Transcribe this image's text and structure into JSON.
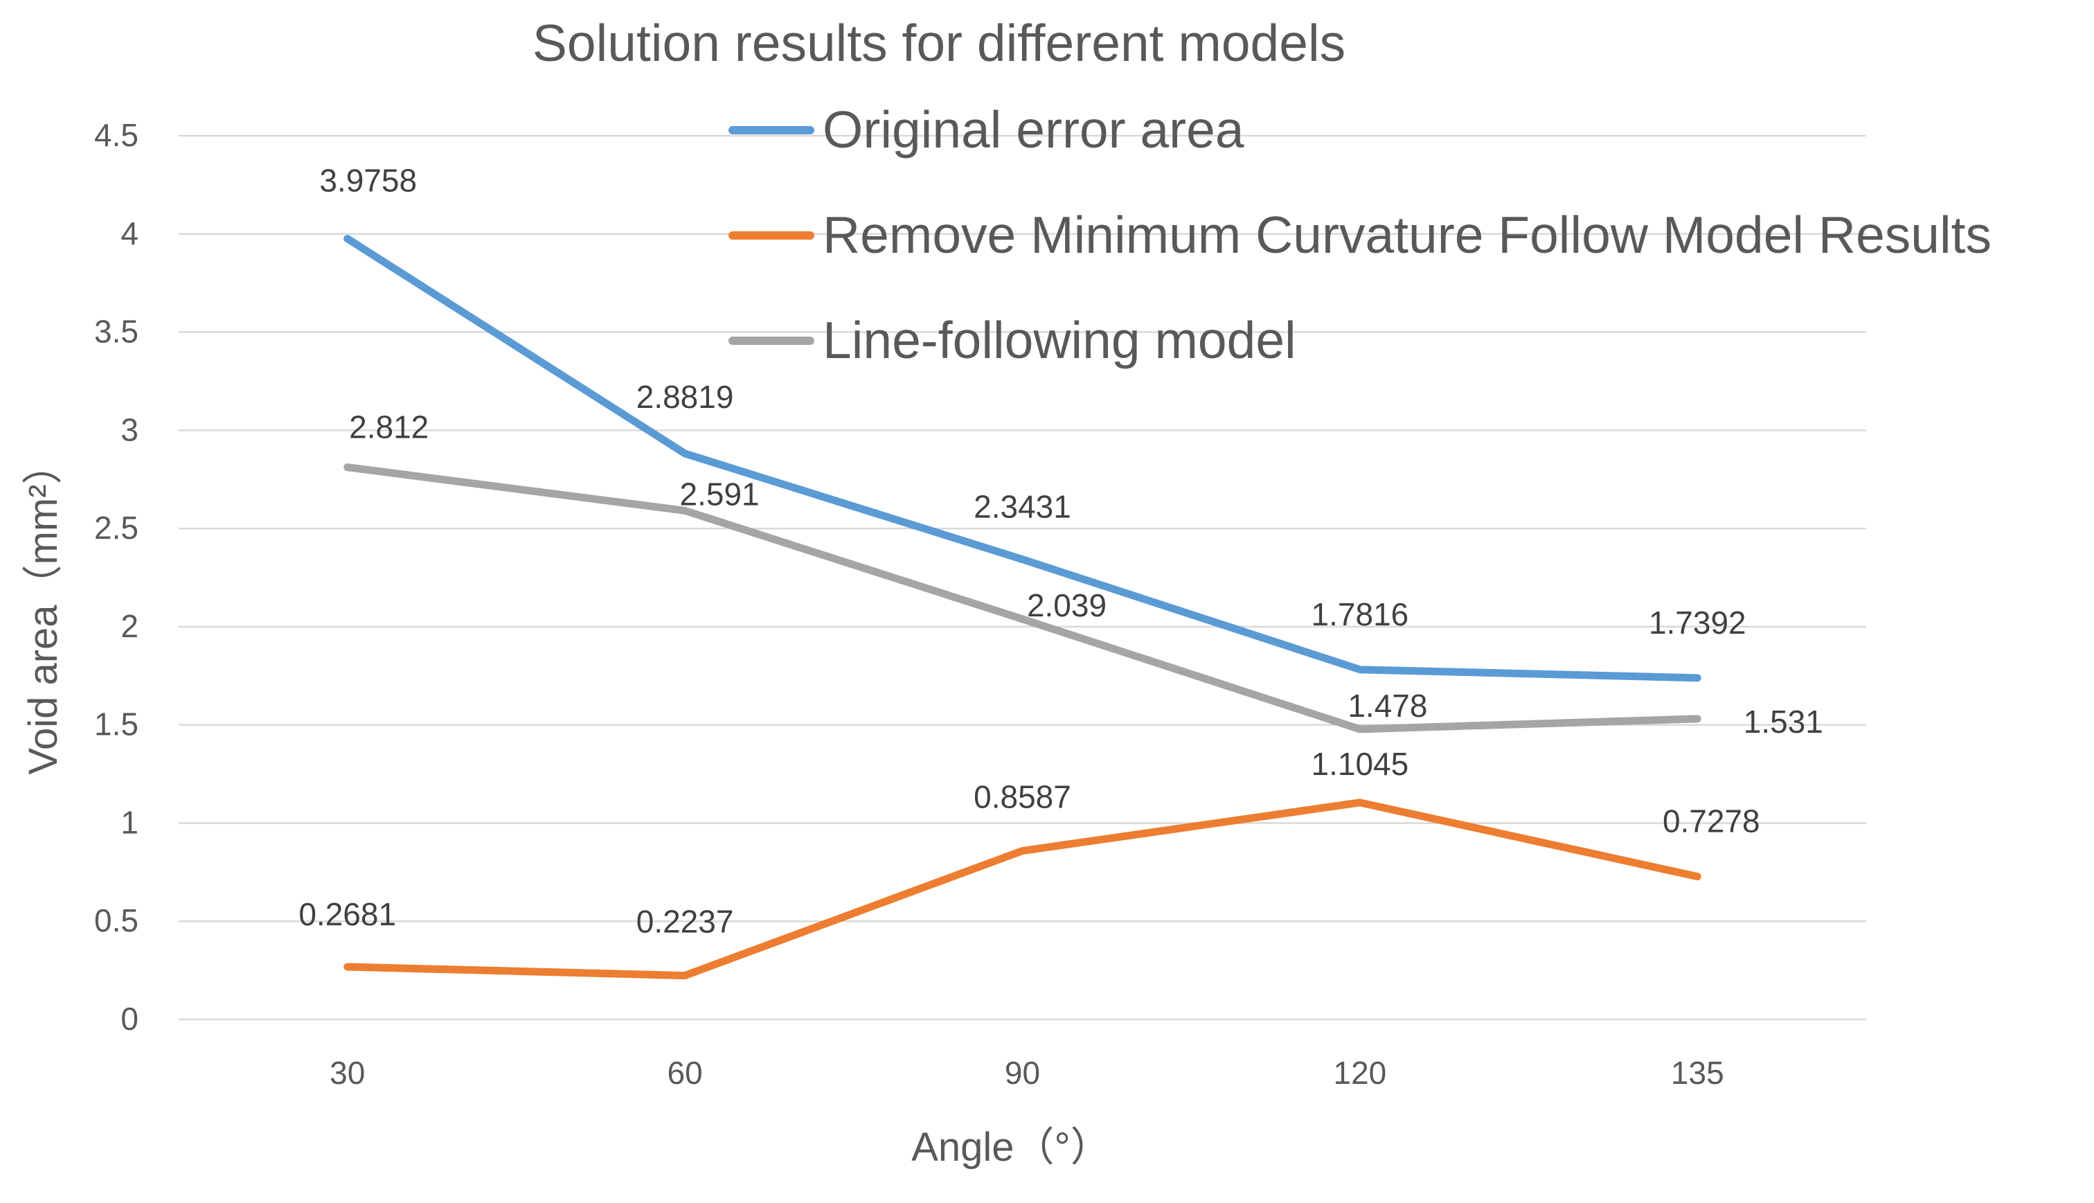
{
  "chart_data": {
    "type": "line",
    "title": "Solution results for different models",
    "xlabel": "Angle（°）",
    "ylabel": "Void area（mm²）",
    "categories": [
      "30",
      "60",
      "90",
      "120",
      "135"
    ],
    "ylim": [
      0,
      4.5
    ],
    "yticks": [
      "0",
      "0.5",
      "1",
      "1.5",
      "2",
      "2.5",
      "3",
      "3.5",
      "4",
      "4.5"
    ],
    "grid": true,
    "legend_position": "top-right",
    "series": [
      {
        "name": "Original error area",
        "color": "#5b9bd5",
        "values": [
          3.9758,
          2.8819,
          2.3431,
          1.7816,
          1.7392
        ],
        "labels": [
          "3.9758",
          "2.8819",
          "2.3431",
          "1.7816",
          "1.7392"
        ]
      },
      {
        "name": "Remove Minimum Curvature Follow Model Results",
        "color": "#ed7d31",
        "values": [
          0.2681,
          0.2237,
          0.8587,
          1.1045,
          0.7278
        ],
        "labels": [
          "0.2681",
          "0.2237",
          "0.8587",
          "1.1045",
          "0.7278"
        ]
      },
      {
        "name": "Line-following model",
        "color": "#a5a5a5",
        "values": [
          2.812,
          2.591,
          2.039,
          1.478,
          1.531
        ],
        "labels": [
          "2.812",
          "2.591",
          "2.039",
          "1.478",
          "1.531"
        ]
      }
    ]
  }
}
